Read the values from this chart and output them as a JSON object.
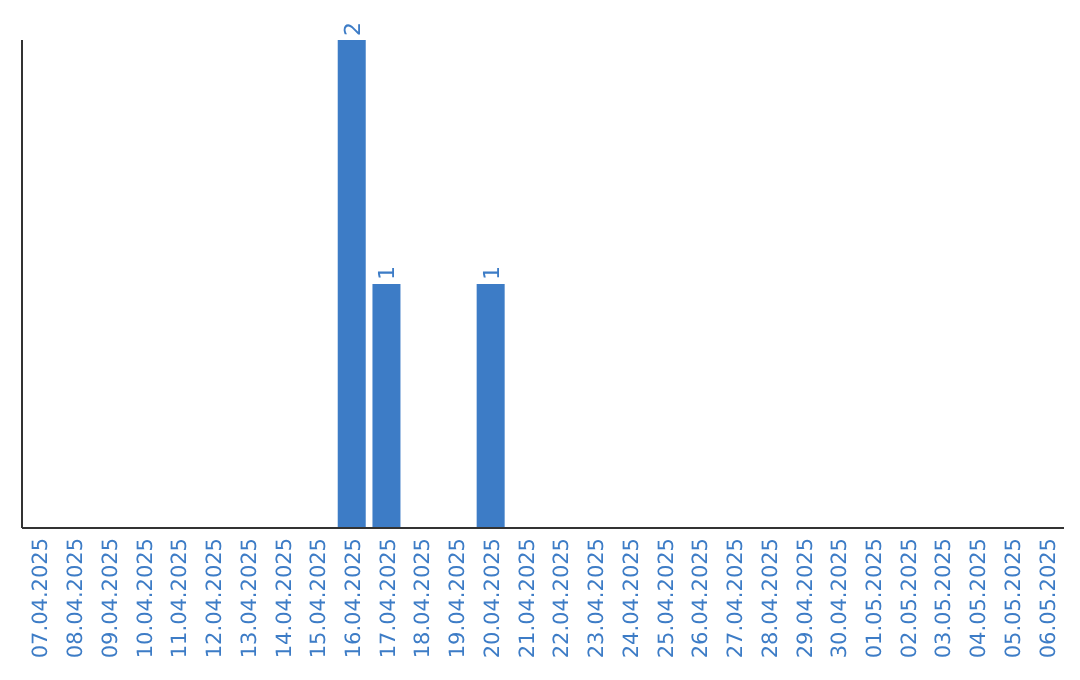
{
  "chart_data": {
    "type": "bar",
    "categories": [
      "07.04.2025",
      "08.04.2025",
      "09.04.2025",
      "10.04.2025",
      "11.04.2025",
      "12.04.2025",
      "13.04.2025",
      "14.04.2025",
      "15.04.2025",
      "16.04.2025",
      "17.04.2025",
      "18.04.2025",
      "19.04.2025",
      "20.04.2025",
      "21.04.2025",
      "22.04.2025",
      "23.04.2025",
      "24.04.2025",
      "25.04.2025",
      "26.04.2025",
      "27.04.2025",
      "28.04.2025",
      "29.04.2025",
      "30.04.2025",
      "01.05.2025",
      "02.05.2025",
      "03.05.2025",
      "04.05.2025",
      "05.05.2025",
      "06.05.2025"
    ],
    "values": [
      0,
      0,
      0,
      0,
      0,
      0,
      0,
      0,
      0,
      2,
      1,
      0,
      0,
      1,
      0,
      0,
      0,
      0,
      0,
      0,
      0,
      0,
      0,
      0,
      0,
      0,
      0,
      0,
      0,
      0
    ],
    "value_labels": [
      null,
      null,
      null,
      null,
      null,
      null,
      null,
      null,
      null,
      "2",
      "1",
      null,
      null,
      "1",
      null,
      null,
      null,
      null,
      null,
      null,
      null,
      null,
      null,
      null,
      null,
      null,
      null,
      null,
      null,
      null
    ],
    "color": "#3d7cc6",
    "tick_labels": "x"
  }
}
